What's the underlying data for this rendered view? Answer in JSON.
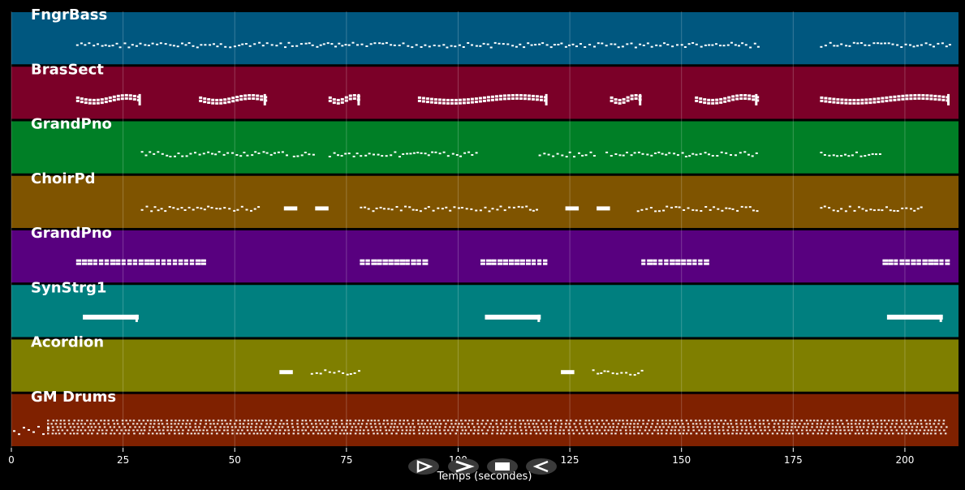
{
  "app": {
    "axis": {
      "xlabel": "Temps (secondes)",
      "xlim": [
        0,
        212
      ],
      "ticks": [
        0,
        25,
        50,
        75,
        100,
        125,
        150,
        175,
        200
      ]
    },
    "controls": [
      {
        "id": "play",
        "icon": "play-icon"
      },
      {
        "id": "forward",
        "icon": "fast-forward-icon"
      },
      {
        "id": "stop",
        "icon": "stop-icon"
      },
      {
        "id": "rewind",
        "icon": "rewind-icon"
      }
    ],
    "tracks": [
      {
        "name": "FngrBass",
        "color": "#00577f",
        "segments": [
          {
            "start": 14.5,
            "end": 167,
            "kind": "line"
          },
          {
            "start": 181,
            "end": 210,
            "kind": "line"
          }
        ]
      },
      {
        "name": "BrasSect",
        "color": "#7b0028",
        "segments": [
          {
            "start": 14.5,
            "end": 29,
            "kind": "phrase"
          },
          {
            "start": 42,
            "end": 57,
            "kind": "phrase"
          },
          {
            "start": 71,
            "end": 78,
            "kind": "phrase"
          },
          {
            "start": 91,
            "end": 120,
            "kind": "phrase"
          },
          {
            "start": 134,
            "end": 141,
            "kind": "phrase"
          },
          {
            "start": 153,
            "end": 167,
            "kind": "phrase"
          },
          {
            "start": 181,
            "end": 210,
            "kind": "phrase"
          }
        ]
      },
      {
        "name": "GrandPno",
        "color": "#007f26",
        "segments": [
          {
            "start": 29,
            "end": 62,
            "kind": "line"
          },
          {
            "start": 63,
            "end": 68,
            "kind": "line"
          },
          {
            "start": 71,
            "end": 104,
            "kind": "line"
          },
          {
            "start": 118,
            "end": 131,
            "kind": "line"
          },
          {
            "start": 133,
            "end": 167,
            "kind": "line"
          },
          {
            "start": 181,
            "end": 195,
            "kind": "line"
          }
        ]
      },
      {
        "name": "ChoirPd",
        "color": "#7f5400",
        "segments": [
          {
            "start": 29,
            "end": 56,
            "kind": "line"
          },
          {
            "start": 61,
            "end": 64,
            "kind": "dot"
          },
          {
            "start": 68,
            "end": 71,
            "kind": "dot"
          },
          {
            "start": 78,
            "end": 118,
            "kind": "line"
          },
          {
            "start": 124,
            "end": 127,
            "kind": "dot"
          },
          {
            "start": 131,
            "end": 134,
            "kind": "dot"
          },
          {
            "start": 140,
            "end": 167,
            "kind": "line"
          },
          {
            "start": 181,
            "end": 204,
            "kind": "line"
          }
        ]
      },
      {
        "name": "GrandPno",
        "color": "#58007f",
        "segments": [
          {
            "start": 14.5,
            "end": 43,
            "kind": "chord"
          },
          {
            "start": 78,
            "end": 92,
            "kind": "chord"
          },
          {
            "start": 105,
            "end": 120,
            "kind": "chord"
          },
          {
            "start": 141,
            "end": 155,
            "kind": "chord"
          },
          {
            "start": 195,
            "end": 210,
            "kind": "chord"
          }
        ]
      },
      {
        "name": "SynStrg1",
        "color": "#007f7f",
        "segments": [
          {
            "start": 16,
            "end": 28.5,
            "kind": "pad"
          },
          {
            "start": 106,
            "end": 118.5,
            "kind": "pad"
          },
          {
            "start": 196,
            "end": 208.5,
            "kind": "pad"
          }
        ]
      },
      {
        "name": "Acordion",
        "color": "#7f7f00",
        "segments": [
          {
            "start": 60,
            "end": 63,
            "kind": "dot"
          },
          {
            "start": 67,
            "end": 78,
            "kind": "line"
          },
          {
            "start": 123,
            "end": 126,
            "kind": "dot"
          },
          {
            "start": 130,
            "end": 141,
            "kind": "line"
          }
        ]
      },
      {
        "name": "GM Drums",
        "color": "#7f2100",
        "segments": [
          {
            "start": 0,
            "end": 212,
            "kind": "drums"
          }
        ]
      }
    ]
  }
}
